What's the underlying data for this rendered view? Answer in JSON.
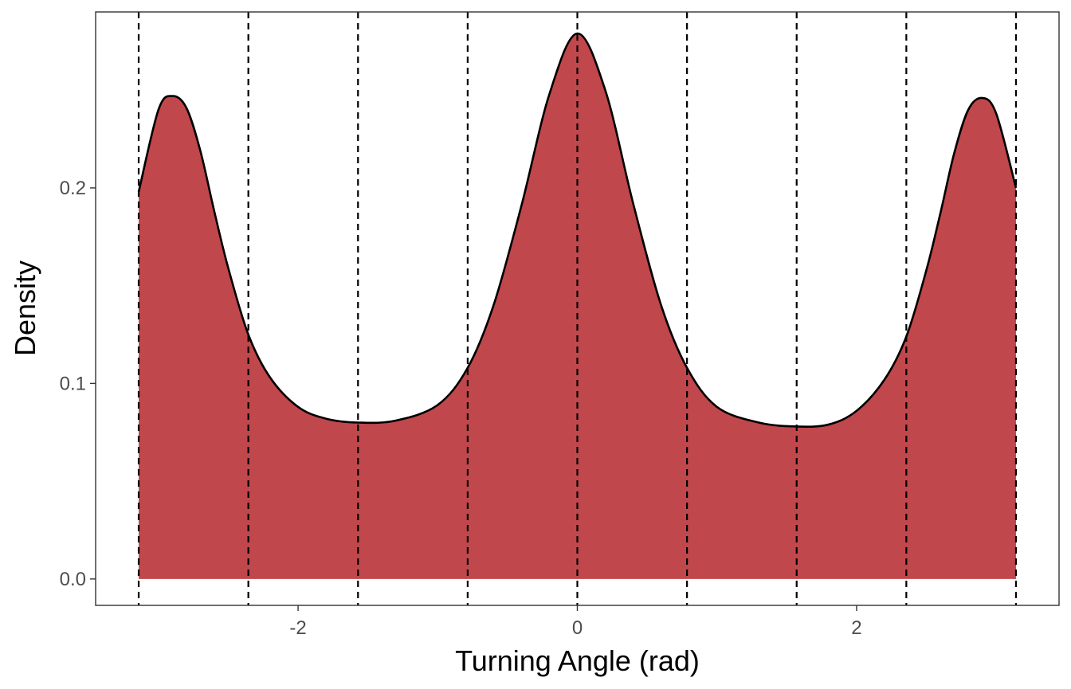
{
  "chart_data": {
    "type": "area",
    "title": "",
    "xlabel": "Turning Angle (rad)",
    "ylabel": "Density",
    "xlim": [
      -3.45,
      3.45
    ],
    "ylim": [
      -0.0135,
      0.29
    ],
    "x_ticks": [
      -2,
      0,
      2
    ],
    "x_tick_labels": [
      "-2",
      "0",
      "2"
    ],
    "y_ticks": [
      0.0,
      0.1,
      0.2
    ],
    "y_tick_labels": [
      "0.0",
      "0.1",
      "0.2"
    ],
    "grid": false,
    "legend": "none",
    "fill_color": "#C0474B",
    "line_color": "#000000",
    "series": [
      {
        "x": [
          -3.1416,
          -3.0,
          -2.9,
          -2.8,
          -2.7,
          -2.6,
          -2.5,
          -2.3562,
          -2.2,
          -2.0,
          -1.8,
          -1.5708,
          -1.3,
          -1.0,
          -0.7854,
          -0.6,
          -0.4,
          -0.2,
          0.0,
          0.2,
          0.4,
          0.6,
          0.7854,
          1.0,
          1.3,
          1.5708,
          1.8,
          2.0,
          2.2,
          2.3562,
          2.5,
          2.6,
          2.7,
          2.8,
          2.9,
          3.0,
          3.1416
        ],
        "y": [
          0.198,
          0.24,
          0.247,
          0.241,
          0.219,
          0.188,
          0.159,
          0.125,
          0.103,
          0.088,
          0.082,
          0.08,
          0.081,
          0.089,
          0.108,
          0.14,
          0.191,
          0.248,
          0.279,
          0.25,
          0.192,
          0.14,
          0.108,
          0.088,
          0.08,
          0.078,
          0.079,
          0.086,
          0.102,
          0.124,
          0.158,
          0.187,
          0.218,
          0.24,
          0.246,
          0.238,
          0.2
        ]
      }
    ],
    "vlines": {
      "style": "dashed",
      "x": [
        -3.1416,
        -2.3562,
        -1.5708,
        -0.7854,
        0.0,
        0.7854,
        1.5708,
        2.3562,
        3.1416
      ]
    }
  }
}
